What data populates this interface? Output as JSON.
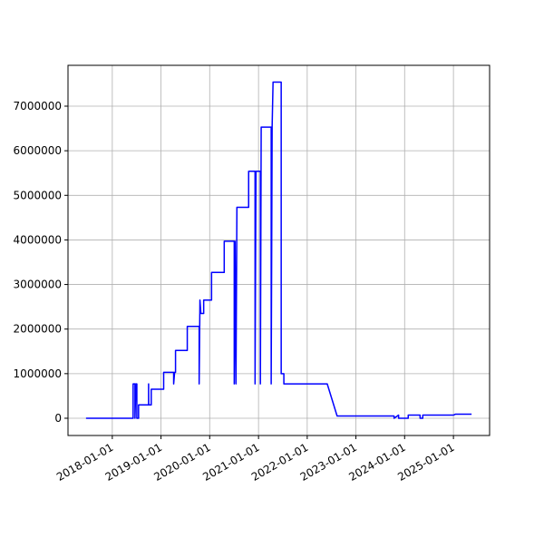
{
  "chart_data": {
    "type": "line",
    "x": [
      "2017-06-18",
      "2018-06-06",
      "2018-06-06",
      "2018-06-20",
      "2018-06-20",
      "2018-06-27",
      "2018-07-04",
      "2018-07-04",
      "2018-07-17",
      "2018-07-17",
      "2018-09-30",
      "2018-09-30",
      "2018-10-01",
      "2018-10-20",
      "2018-10-20",
      "2019-01-21",
      "2019-01-21",
      "2019-04-06",
      "2019-04-06",
      "2019-04-13",
      "2019-04-20",
      "2019-04-20",
      "2019-07-17",
      "2019-07-17",
      "2019-10-14",
      "2019-10-14",
      "2019-10-20",
      "2019-10-27",
      "2019-11-17",
      "2019-11-17",
      "2020-01-15",
      "2020-01-15",
      "2020-04-19",
      "2020-04-19",
      "2020-07-03",
      "2020-07-03",
      "2020-07-09",
      "2020-07-16",
      "2020-07-23",
      "2020-10-19",
      "2020-10-19",
      "2020-12-06",
      "2020-12-06",
      "2020-12-13",
      "2021-01-15",
      "2021-01-15",
      "2021-01-21",
      "2021-04-06",
      "2021-04-06",
      "2021-04-13",
      "2021-04-20",
      "2021-06-20",
      "2021-06-20",
      "2021-07-10",
      "2021-07-10",
      "2022-05-31",
      "2022-08-13",
      "2023-10-14",
      "2023-10-14",
      "2023-11-17",
      "2023-11-17",
      "2024-01-28",
      "2024-01-28",
      "2024-04-26",
      "2024-04-26",
      "2024-05-16",
      "2024-05-16",
      "2025-01-01",
      "2025-01-15",
      "2025-05-17"
    ],
    "series": [
      {
        "color": "#0000ff",
        "values": [
          0,
          0,
          770000,
          770000,
          0,
          770000,
          770000,
          0,
          0,
          300000,
          300000,
          770000,
          300000,
          300000,
          650000,
          650000,
          1030000,
          1030000,
          770000,
          1030000,
          1030000,
          1520000,
          1520000,
          2060000,
          2060000,
          770000,
          2650000,
          2350000,
          2350000,
          2650000,
          2650000,
          3270000,
          3270000,
          3970000,
          3970000,
          770000,
          3970000,
          770000,
          4730000,
          4730000,
          5540000,
          5540000,
          770000,
          5540000,
          5540000,
          770000,
          6530000,
          6530000,
          770000,
          6530000,
          7540000,
          7540000,
          1000000,
          1000000,
          770000,
          770000,
          50000,
          50000,
          0,
          70000,
          0,
          0,
          70000,
          70000,
          0,
          0,
          70000,
          70000,
          90000,
          90000
        ]
      }
    ],
    "xlim": [
      "2017-02-03",
      "2025-09-29"
    ],
    "xticks": [
      "2018-01-01",
      "2019-01-01",
      "2020-01-01",
      "2021-01-01",
      "2022-01-01",
      "2023-01-01",
      "2024-01-01",
      "2025-01-01"
    ],
    "ylim": [
      -387000,
      7916000
    ],
    "yticks": [
      0,
      1000000,
      2000000,
      3000000,
      4000000,
      5000000,
      6000000,
      7000000
    ],
    "grid": true
  }
}
